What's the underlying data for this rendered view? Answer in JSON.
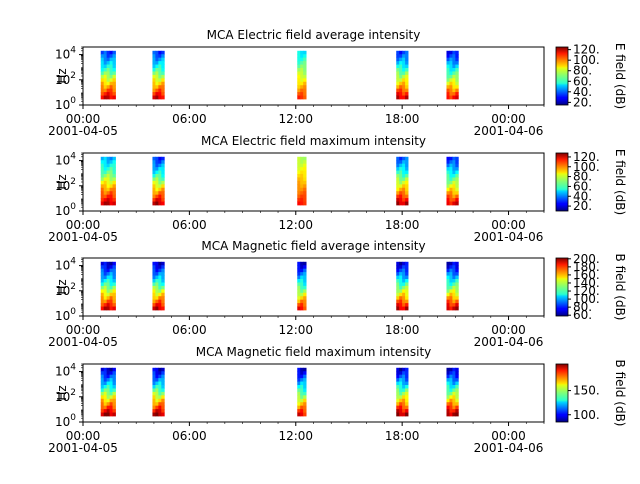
{
  "chart_data": [
    {
      "type": "heatmap",
      "title": "MCA  Electric field average intensity",
      "ylabel": "Hz",
      "yscale": "log",
      "ylim": [
        1,
        40000
      ],
      "y_ticks": [
        {
          "value": 1,
          "base": "10",
          "exp": "0"
        },
        {
          "value": 100,
          "base": "10",
          "exp": "2"
        },
        {
          "value": 10000,
          "base": "10",
          "exp": "4"
        }
      ],
      "xlim": [
        "2001-04-05 00:00",
        "2001-04-06 02:00"
      ],
      "x_ticks": [
        "00:00",
        "06:00",
        "12:00",
        "18:00",
        "00:00"
      ],
      "x_date_labels": [
        "2001-04-05",
        "2001-04-06"
      ],
      "colorbar": {
        "label": "E field (dB)",
        "min": 15,
        "max": 125,
        "ticks": [
          20,
          40,
          60,
          80,
          100,
          120
        ]
      },
      "series": [
        {
          "start": "01:00",
          "end": "01:50",
          "fmin": 3,
          "fmax": 20000,
          "low_dB": 35,
          "high_dB": 115
        },
        {
          "start": "03:55",
          "end": "04:35",
          "fmin": 3,
          "fmax": 20000,
          "low_dB": 35,
          "high_dB": 115
        },
        {
          "start": "12:05",
          "end": "12:35",
          "fmin": 3,
          "fmax": 20000,
          "low_dB": 55,
          "high_dB": 105
        },
        {
          "start": "17:40",
          "end": "18:20",
          "fmin": 3,
          "fmax": 20000,
          "low_dB": 35,
          "high_dB": 115
        },
        {
          "start": "20:30",
          "end": "21:10",
          "fmin": 3,
          "fmax": 20000,
          "low_dB": 30,
          "high_dB": 110
        }
      ]
    },
    {
      "type": "heatmap",
      "title": "MCA  Electric field maximum intensity",
      "ylabel": "Hz",
      "yscale": "log",
      "ylim": [
        1,
        40000
      ],
      "y_ticks": [
        {
          "value": 1,
          "base": "10",
          "exp": "0"
        },
        {
          "value": 100,
          "base": "10",
          "exp": "2"
        },
        {
          "value": 10000,
          "base": "10",
          "exp": "4"
        }
      ],
      "xlim": [
        "2001-04-05 00:00",
        "2001-04-06 02:00"
      ],
      "x_ticks": [
        "00:00",
        "06:00",
        "12:00",
        "18:00",
        "00:00"
      ],
      "x_date_labels": [
        "2001-04-05",
        "2001-04-06"
      ],
      "colorbar": {
        "label": "E field (dB)",
        "min": 10,
        "max": 128,
        "ticks": [
          20,
          40,
          60,
          80,
          100,
          120
        ]
      },
      "series": [
        {
          "start": "01:00",
          "end": "01:50",
          "fmin": 3,
          "fmax": 20000,
          "low_dB": 45,
          "high_dB": 120
        },
        {
          "start": "03:55",
          "end": "04:35",
          "fmin": 3,
          "fmax": 20000,
          "low_dB": 30,
          "high_dB": 120
        },
        {
          "start": "12:05",
          "end": "12:35",
          "fmin": 3,
          "fmax": 20000,
          "low_dB": 75,
          "high_dB": 110
        },
        {
          "start": "17:40",
          "end": "18:20",
          "fmin": 3,
          "fmax": 20000,
          "low_dB": 35,
          "high_dB": 120
        },
        {
          "start": "20:30",
          "end": "21:10",
          "fmin": 3,
          "fmax": 20000,
          "low_dB": 30,
          "high_dB": 115
        }
      ]
    },
    {
      "type": "heatmap",
      "title": "MCA  Magnetic field average intensity",
      "ylabel": "Hz",
      "yscale": "log",
      "ylim": [
        1,
        40000
      ],
      "y_ticks": [
        {
          "value": 1,
          "base": "10",
          "exp": "0"
        },
        {
          "value": 100,
          "base": "10",
          "exp": "2"
        },
        {
          "value": 10000,
          "base": "10",
          "exp": "4"
        }
      ],
      "xlim": [
        "2001-04-05 00:00",
        "2001-04-06 02:00"
      ],
      "x_ticks": [
        "00:00",
        "06:00",
        "12:00",
        "18:00",
        "00:00"
      ],
      "x_date_labels": [
        "2001-04-05",
        "2001-04-06"
      ],
      "colorbar": {
        "label": "B field (dB)",
        "min": 58,
        "max": 202,
        "ticks": [
          60,
          80,
          100,
          120,
          140,
          160,
          180,
          200
        ]
      },
      "series": [
        {
          "start": "01:00",
          "end": "01:50",
          "fmin": 3,
          "fmax": 20000,
          "low_dB": 70,
          "high_dB": 190
        },
        {
          "start": "03:55",
          "end": "04:35",
          "fmin": 3,
          "fmax": 20000,
          "low_dB": 70,
          "high_dB": 190
        },
        {
          "start": "12:05",
          "end": "12:35",
          "fmin": 3,
          "fmax": 20000,
          "low_dB": 70,
          "high_dB": 180
        },
        {
          "start": "17:40",
          "end": "18:20",
          "fmin": 3,
          "fmax": 20000,
          "low_dB": 70,
          "high_dB": 190
        },
        {
          "start": "20:30",
          "end": "21:10",
          "fmin": 3,
          "fmax": 20000,
          "low_dB": 70,
          "high_dB": 190
        }
      ]
    },
    {
      "type": "heatmap",
      "title": "MCA  Magnetic field maximum intensity",
      "ylabel": "Hz",
      "yscale": "log",
      "ylim": [
        1,
        40000
      ],
      "y_ticks": [
        {
          "value": 1,
          "base": "10",
          "exp": "0"
        },
        {
          "value": 100,
          "base": "10",
          "exp": "2"
        },
        {
          "value": 10000,
          "base": "10",
          "exp": "4"
        }
      ],
      "xlim": [
        "2001-04-05 00:00",
        "2001-04-06 02:00"
      ],
      "x_ticks": [
        "00:00",
        "06:00",
        "12:00",
        "18:00",
        "00:00"
      ],
      "x_date_labels": [
        "2001-04-05",
        "2001-04-06"
      ],
      "colorbar": {
        "label": "B field (dB)",
        "min": 85,
        "max": 205,
        "ticks": [
          100,
          150
        ]
      },
      "series": [
        {
          "start": "01:00",
          "end": "01:50",
          "fmin": 3,
          "fmax": 20000,
          "low_dB": 95,
          "high_dB": 200
        },
        {
          "start": "03:55",
          "end": "04:35",
          "fmin": 3,
          "fmax": 20000,
          "low_dB": 95,
          "high_dB": 200
        },
        {
          "start": "12:05",
          "end": "12:35",
          "fmin": 3,
          "fmax": 20000,
          "low_dB": 95,
          "high_dB": 190
        },
        {
          "start": "17:40",
          "end": "18:20",
          "fmin": 3,
          "fmax": 20000,
          "low_dB": 95,
          "high_dB": 200
        },
        {
          "start": "20:30",
          "end": "21:10",
          "fmin": 3,
          "fmax": 20000,
          "low_dB": 95,
          "high_dB": 200
        }
      ]
    }
  ]
}
